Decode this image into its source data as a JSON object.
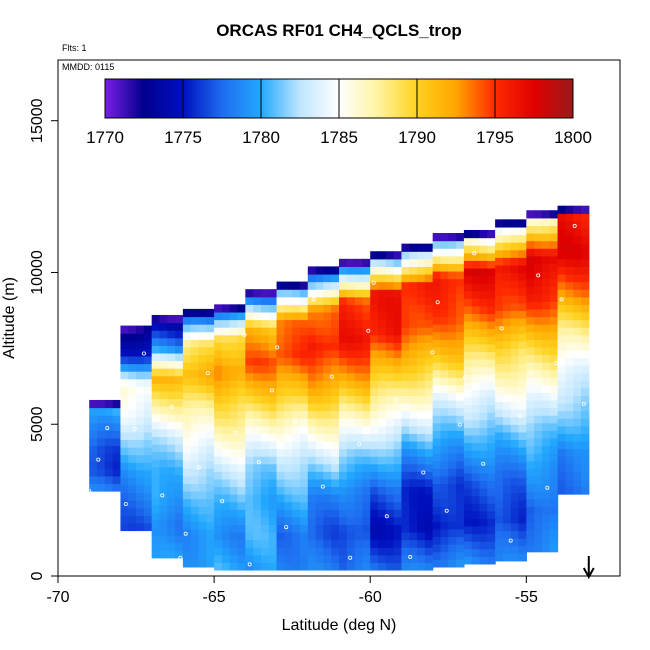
{
  "chart_data": {
    "type": "heatmap",
    "title": "ORCAS RF01 CH4_QCLS_trop",
    "xlabel": "Latitude (deg N)",
    "ylabel": "Altitude (m)",
    "flights_text": "Flts: 1",
    "date_text": "MMDD: 0115",
    "xlim": [
      -70,
      -52
    ],
    "ylim": [
      0,
      17000
    ],
    "x_ticks": [
      -70,
      -65,
      -60,
      -55
    ],
    "y_ticks": [
      0,
      5000,
      10000,
      15000
    ],
    "colorbar": {
      "range": [
        1770,
        1800
      ],
      "ticks": [
        1770,
        1775,
        1780,
        1785,
        1790,
        1795,
        1800
      ],
      "colors": [
        "#7a1ee6",
        "#00008c",
        "#0010c0",
        "#1e6cf0",
        "#22a8ff",
        "#bfe6ff",
        "#ffffff",
        "#fff3a0",
        "#ffd21e",
        "#ffa500",
        "#ff2a00",
        "#e00000",
        "#9a1a1a"
      ]
    },
    "arrow_latitude": -53,
    "columns": [
      {
        "lat": -68.5,
        "bottom": 2800,
        "top": 5600,
        "ch4": [
          1778,
          1776,
          1777,
          1779,
          1781
        ]
      },
      {
        "lat": -67.5,
        "bottom": 1500,
        "top": 8200,
        "ch4": [
          1777,
          1778,
          1779,
          1781,
          1784,
          1786,
          1776,
          1772
        ]
      },
      {
        "lat": -66.5,
        "bottom": 600,
        "top": 8500,
        "ch4": [
          1779,
          1778,
          1780,
          1781,
          1783,
          1787,
          1791,
          1779,
          1773
        ]
      },
      {
        "lat": -65.5,
        "bottom": 300,
        "top": 8700,
        "ch4": [
          1780,
          1779,
          1780,
          1782,
          1785,
          1788,
          1792,
          1788,
          1774
        ]
      },
      {
        "lat": -64.5,
        "bottom": 200,
        "top": 8900,
        "ch4": [
          1780,
          1779,
          1781,
          1783,
          1786,
          1789,
          1793,
          1790,
          1775
        ]
      },
      {
        "lat": -63.5,
        "bottom": 200,
        "top": 9300,
        "ch4": [
          1779,
          1780,
          1780,
          1782,
          1786,
          1790,
          1794,
          1791,
          1776
        ]
      },
      {
        "lat": -62.5,
        "bottom": 200,
        "top": 9600,
        "ch4": [
          1779,
          1778,
          1780,
          1782,
          1786,
          1791,
          1795,
          1793,
          1777
        ]
      },
      {
        "lat": -61.5,
        "bottom": 200,
        "top": 10000,
        "ch4": [
          1778,
          1777,
          1779,
          1783,
          1787,
          1792,
          1796,
          1794,
          1776
        ]
      },
      {
        "lat": -60.5,
        "bottom": 200,
        "top": 10300,
        "ch4": [
          1778,
          1776,
          1778,
          1782,
          1787,
          1792,
          1796,
          1795,
          1777
        ]
      },
      {
        "lat": -59.5,
        "bottom": 200,
        "top": 10600,
        "ch4": [
          1778,
          1775,
          1777,
          1781,
          1786,
          1791,
          1796,
          1796,
          1778
        ]
      },
      {
        "lat": -58.5,
        "bottom": 200,
        "top": 10900,
        "ch4": [
          1778,
          1775,
          1776,
          1780,
          1785,
          1790,
          1795,
          1796,
          1778
        ]
      },
      {
        "lat": -57.5,
        "bottom": 300,
        "top": 11200,
        "ch4": [
          1779,
          1775,
          1776,
          1780,
          1784,
          1790,
          1794,
          1796,
          1779
        ]
      },
      {
        "lat": -56.5,
        "bottom": 400,
        "top": 11400,
        "ch4": [
          1779,
          1776,
          1777,
          1780,
          1784,
          1789,
          1794,
          1797,
          1781
        ]
      },
      {
        "lat": -55.5,
        "bottom": 500,
        "top": 11600,
        "ch4": [
          1778,
          1776,
          1778,
          1781,
          1785,
          1789,
          1795,
          1797,
          1782
        ]
      },
      {
        "lat": -54.5,
        "bottom": 800,
        "top": 11900,
        "ch4": [
          1779,
          1777,
          1779,
          1782,
          1786,
          1790,
          1795,
          1798,
          1785
        ]
      },
      {
        "lat": -53.5,
        "bottom": 2700,
        "top": 12000,
        "ch4": [
          1778,
          1778,
          1781,
          1784,
          1788,
          1793,
          1797,
          1796
        ]
      }
    ]
  }
}
